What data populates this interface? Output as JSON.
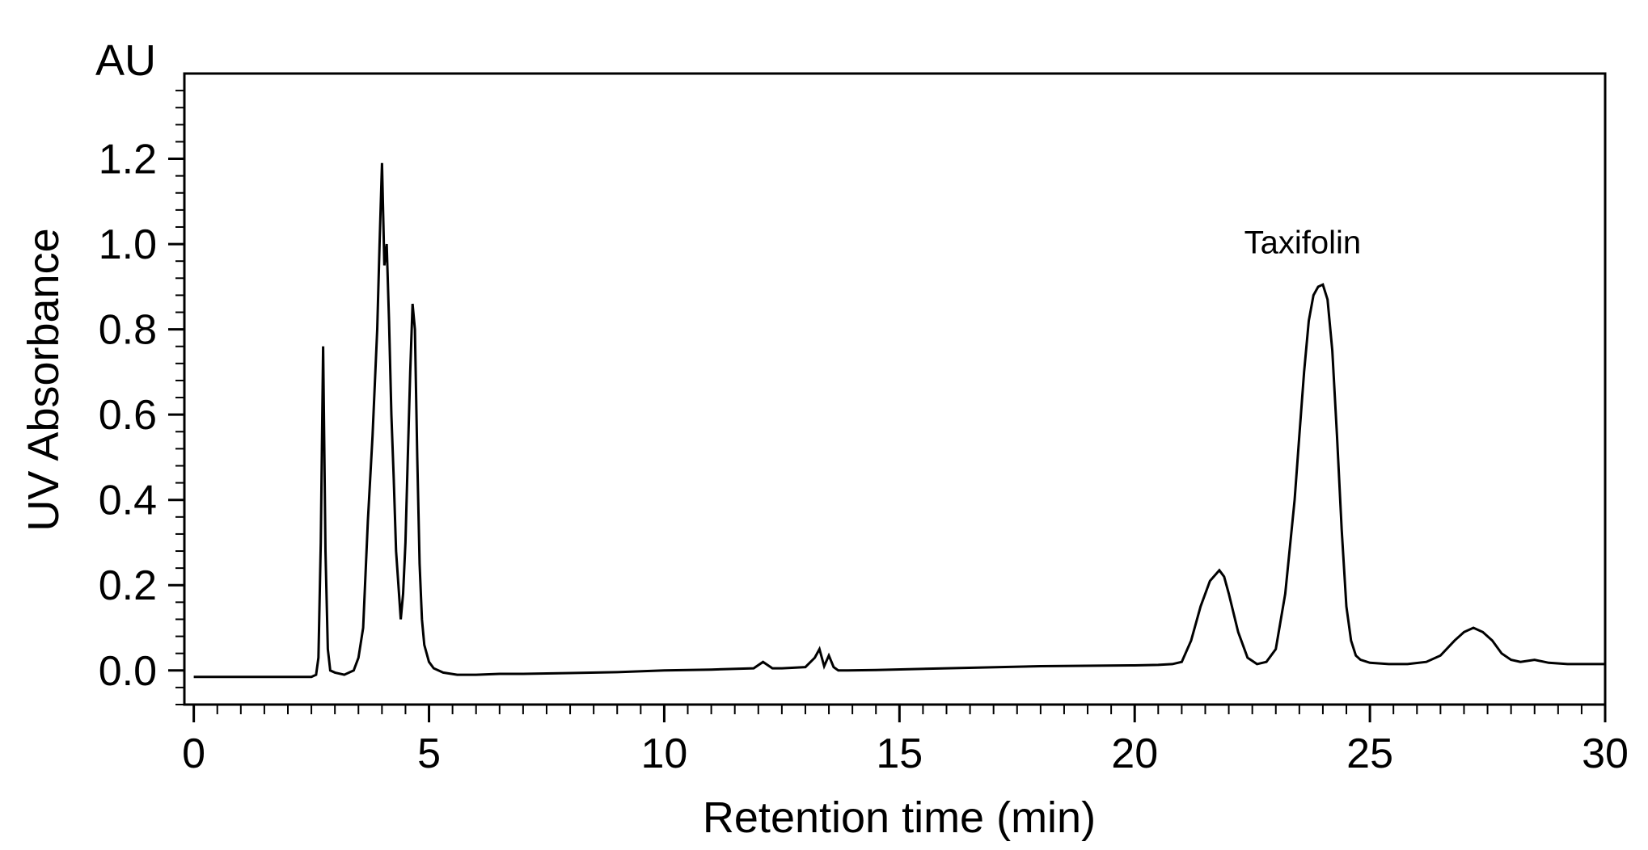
{
  "chart_data": {
    "type": "line",
    "title": "",
    "xlabel": "Retention time (min)",
    "ylabel": "UV Absorbance",
    "yunit": "AU",
    "xlim": [
      -0.2,
      30
    ],
    "ylim": [
      -0.08,
      1.4
    ],
    "x_ticks": [
      0,
      5,
      10,
      15,
      20,
      25,
      30
    ],
    "x_tick_labels": [
      "0",
      "5",
      "10",
      "15",
      "20",
      "25",
      "30"
    ],
    "y_ticks": [
      0.0,
      0.2,
      0.4,
      0.6,
      0.8,
      1.0,
      1.2
    ],
    "y_tick_labels": [
      "0.0",
      "0.2",
      "0.4",
      "0.6",
      "0.8",
      "1.0",
      "1.2"
    ],
    "grid": false,
    "line_color": "#000000",
    "annotations": [
      {
        "text": "Taxifolin",
        "x": 24.0,
        "y": 0.91
      }
    ],
    "series": [
      {
        "x": [
          0,
          2.5,
          2.6,
          2.65,
          2.7,
          2.75,
          2.8,
          2.85,
          2.9,
          3.0,
          3.2,
          3.4,
          3.5,
          3.6,
          3.7,
          3.8,
          3.9,
          3.95,
          4.0,
          4.05,
          4.1,
          4.15,
          4.2,
          4.25,
          4.3,
          4.35,
          4.4,
          4.45,
          4.5,
          4.55,
          4.6,
          4.65,
          4.7,
          4.75,
          4.8,
          4.85,
          4.9,
          5.0,
          5.1,
          5.3,
          5.6,
          6.0,
          6.5,
          7.0,
          8.0,
          9.0,
          10.0,
          11.0,
          11.9,
          12.1,
          12.3,
          12.5,
          13.0,
          13.2,
          13.3,
          13.4,
          13.5,
          13.6,
          13.7,
          13.9,
          14.5,
          16.0,
          18.0,
          20.0,
          20.5,
          20.8,
          21.0,
          21.2,
          21.4,
          21.6,
          21.8,
          21.9,
          22.0,
          22.2,
          22.4,
          22.6,
          22.8,
          23.0,
          23.2,
          23.4,
          23.5,
          23.6,
          23.7,
          23.8,
          23.9,
          24.0,
          24.1,
          24.2,
          24.3,
          24.4,
          24.5,
          24.6,
          24.7,
          24.8,
          25.0,
          25.4,
          25.8,
          26.2,
          26.5,
          26.8,
          27.0,
          27.2,
          27.4,
          27.6,
          27.8,
          28.0,
          28.2,
          28.5,
          28.8,
          29.2,
          30.0
        ],
        "y": [
          -0.015,
          -0.015,
          -0.01,
          0.03,
          0.3,
          0.76,
          0.28,
          0.05,
          0.0,
          -0.005,
          -0.01,
          0.0,
          0.03,
          0.1,
          0.35,
          0.55,
          0.8,
          1.0,
          1.19,
          0.95,
          1.0,
          0.82,
          0.6,
          0.45,
          0.28,
          0.2,
          0.12,
          0.18,
          0.3,
          0.5,
          0.7,
          0.86,
          0.8,
          0.5,
          0.25,
          0.12,
          0.06,
          0.02,
          0.005,
          -0.005,
          -0.01,
          -0.01,
          -0.008,
          -0.008,
          -0.006,
          -0.004,
          0.0,
          0.002,
          0.005,
          0.02,
          0.005,
          0.005,
          0.008,
          0.03,
          0.05,
          0.01,
          0.035,
          0.008,
          0.0,
          0.0,
          0.001,
          0.005,
          0.01,
          0.012,
          0.013,
          0.015,
          0.02,
          0.07,
          0.15,
          0.21,
          0.235,
          0.22,
          0.18,
          0.09,
          0.03,
          0.015,
          0.02,
          0.05,
          0.18,
          0.4,
          0.55,
          0.7,
          0.82,
          0.88,
          0.9,
          0.905,
          0.87,
          0.75,
          0.55,
          0.33,
          0.15,
          0.07,
          0.035,
          0.025,
          0.018,
          0.015,
          0.015,
          0.02,
          0.035,
          0.07,
          0.09,
          0.1,
          0.09,
          0.07,
          0.04,
          0.025,
          0.02,
          0.025,
          0.018,
          0.015,
          0.015
        ]
      }
    ]
  }
}
